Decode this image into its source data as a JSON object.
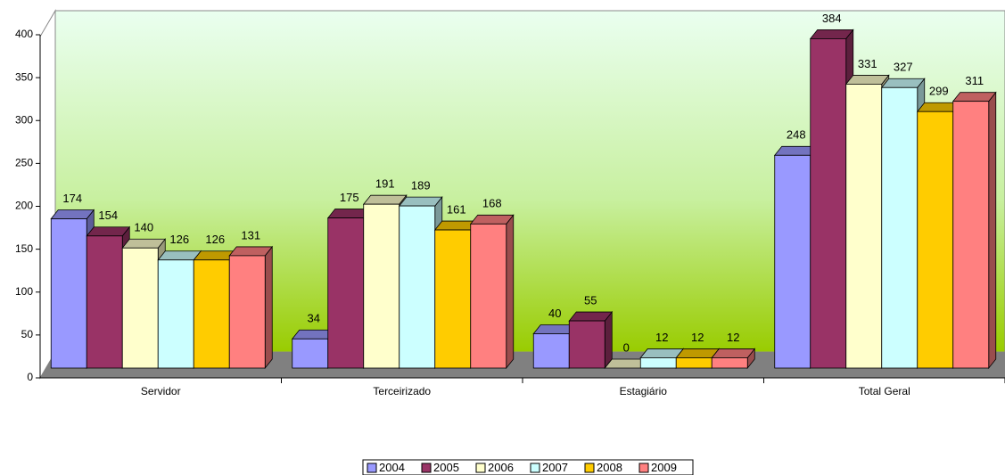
{
  "chart_data": {
    "type": "bar3d",
    "categories": [
      "Servidor",
      "Terceirizado",
      "Estagiário",
      "Total Geral"
    ],
    "series": [
      {
        "name": "2004",
        "color": "#9999ff",
        "values": [
          174,
          34,
          40,
          248
        ]
      },
      {
        "name": "2005",
        "color": "#993366",
        "values": [
          154,
          175,
          55,
          384
        ]
      },
      {
        "name": "2006",
        "color": "#ffffcc",
        "values": [
          140,
          191,
          0,
          331
        ]
      },
      {
        "name": "2007",
        "color": "#ccffff",
        "values": [
          126,
          189,
          12,
          327
        ]
      },
      {
        "name": "2008",
        "color": "#ffcc00",
        "values": [
          126,
          161,
          12,
          299
        ]
      },
      {
        "name": "2009",
        "color": "#ff8080",
        "values": [
          131,
          168,
          12,
          311
        ]
      }
    ],
    "ylim": [
      0,
      400
    ],
    "yticks": [
      0,
      50,
      100,
      150,
      200,
      250,
      300,
      350,
      400
    ],
    "legend": "bottom"
  }
}
